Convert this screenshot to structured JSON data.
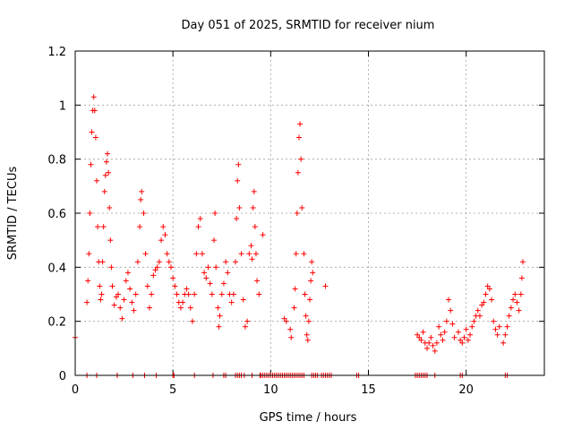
{
  "chart_data": {
    "type": "scatter",
    "title": "Day 051 of 2025, SRMTID for receiver nium",
    "xlabel": "GPS time / hours",
    "ylabel": "SRMTID / TECUs",
    "xlim": [
      0,
      24
    ],
    "ylim": [
      0,
      1.2
    ],
    "x_ticks": [
      0,
      5,
      10,
      15,
      20
    ],
    "x_tick_labels": [
      "0",
      "5",
      "10",
      "15",
      "20"
    ],
    "y_ticks": [
      0,
      0.2,
      0.4,
      0.6,
      0.8,
      1.0,
      1.2
    ],
    "y_tick_labels": [
      "0",
      "0.2",
      "0.4",
      "0.6",
      "0.8",
      "1",
      "1.2"
    ],
    "grid": true,
    "marker": "+",
    "series": [
      {
        "name": "SRMTID",
        "color": "#ff0000",
        "points": [
          [
            0.0,
            0.14
          ],
          [
            0.6,
            0.27
          ],
          [
            0.65,
            0.35
          ],
          [
            0.7,
            0.45
          ],
          [
            0.75,
            0.6
          ],
          [
            0.8,
            0.78
          ],
          [
            0.85,
            0.9
          ],
          [
            0.9,
            0.98
          ],
          [
            0.95,
            1.03
          ],
          [
            1.0,
            0.98
          ],
          [
            1.05,
            0.88
          ],
          [
            1.1,
            0.72
          ],
          [
            1.15,
            0.55
          ],
          [
            1.2,
            0.42
          ],
          [
            1.25,
            0.33
          ],
          [
            1.3,
            0.28
          ],
          [
            1.35,
            0.3
          ],
          [
            1.4,
            0.42
          ],
          [
            1.45,
            0.55
          ],
          [
            1.5,
            0.68
          ],
          [
            1.55,
            0.74
          ],
          [
            1.6,
            0.79
          ],
          [
            1.65,
            0.82
          ],
          [
            1.7,
            0.75
          ],
          [
            1.75,
            0.62
          ],
          [
            1.8,
            0.5
          ],
          [
            1.85,
            0.4
          ],
          [
            1.9,
            0.33
          ],
          [
            2.0,
            0.26
          ],
          [
            2.1,
            0.29
          ],
          [
            2.2,
            0.3
          ],
          [
            2.3,
            0.25
          ],
          [
            2.4,
            0.21
          ],
          [
            2.5,
            0.28
          ],
          [
            2.6,
            0.35
          ],
          [
            2.7,
            0.38
          ],
          [
            2.8,
            0.32
          ],
          [
            2.9,
            0.27
          ],
          [
            3.0,
            0.24
          ],
          [
            3.1,
            0.3
          ],
          [
            3.2,
            0.42
          ],
          [
            3.3,
            0.55
          ],
          [
            3.35,
            0.65
          ],
          [
            3.4,
            0.68
          ],
          [
            3.5,
            0.6
          ],
          [
            3.6,
            0.45
          ],
          [
            3.7,
            0.33
          ],
          [
            3.8,
            0.25
          ],
          [
            3.9,
            0.3
          ],
          [
            4.0,
            0.37
          ],
          [
            4.1,
            0.39
          ],
          [
            4.2,
            0.4
          ],
          [
            4.3,
            0.42
          ],
          [
            4.4,
            0.5
          ],
          [
            4.5,
            0.55
          ],
          [
            4.6,
            0.52
          ],
          [
            4.7,
            0.45
          ],
          [
            4.8,
            0.42
          ],
          [
            4.9,
            0.4
          ],
          [
            5.0,
            0.36
          ],
          [
            5.1,
            0.33
          ],
          [
            5.2,
            0.3
          ],
          [
            5.3,
            0.27
          ],
          [
            5.4,
            0.25
          ],
          [
            5.5,
            0.27
          ],
          [
            5.6,
            0.3
          ],
          [
            5.7,
            0.32
          ],
          [
            5.8,
            0.3
          ],
          [
            5.9,
            0.25
          ],
          [
            6.0,
            0.2
          ],
          [
            6.1,
            0.3
          ],
          [
            6.2,
            0.45
          ],
          [
            6.3,
            0.55
          ],
          [
            6.4,
            0.58
          ],
          [
            6.5,
            0.45
          ],
          [
            6.6,
            0.38
          ],
          [
            6.7,
            0.36
          ],
          [
            6.8,
            0.4
          ],
          [
            6.9,
            0.34
          ],
          [
            7.0,
            0.3
          ],
          [
            7.1,
            0.5
          ],
          [
            7.15,
            0.6
          ],
          [
            7.2,
            0.4
          ],
          [
            7.3,
            0.25
          ],
          [
            7.35,
            0.18
          ],
          [
            7.4,
            0.22
          ],
          [
            7.5,
            0.3
          ],
          [
            7.6,
            0.34
          ],
          [
            7.7,
            0.42
          ],
          [
            7.8,
            0.38
          ],
          [
            7.9,
            0.3
          ],
          [
            8.0,
            0.27
          ],
          [
            8.1,
            0.3
          ],
          [
            8.2,
            0.42
          ],
          [
            8.25,
            0.58
          ],
          [
            8.3,
            0.72
          ],
          [
            8.35,
            0.78
          ],
          [
            8.4,
            0.62
          ],
          [
            8.5,
            0.45
          ],
          [
            8.6,
            0.28
          ],
          [
            8.7,
            0.18
          ],
          [
            8.8,
            0.2
          ],
          [
            8.9,
            0.45
          ],
          [
            9.0,
            0.48
          ],
          [
            9.05,
            0.43
          ],
          [
            9.1,
            0.62
          ],
          [
            9.15,
            0.68
          ],
          [
            9.2,
            0.55
          ],
          [
            9.25,
            0.45
          ],
          [
            9.3,
            0.35
          ],
          [
            9.4,
            0.3
          ],
          [
            9.6,
            0.52
          ],
          [
            10.7,
            0.21
          ],
          [
            10.8,
            0.2
          ],
          [
            11.0,
            0.17
          ],
          [
            11.05,
            0.14
          ],
          [
            11.2,
            0.25
          ],
          [
            11.25,
            0.32
          ],
          [
            11.3,
            0.45
          ],
          [
            11.35,
            0.6
          ],
          [
            11.4,
            0.75
          ],
          [
            11.45,
            0.88
          ],
          [
            11.5,
            0.93
          ],
          [
            11.55,
            0.8
          ],
          [
            11.6,
            0.62
          ],
          [
            11.7,
            0.45
          ],
          [
            11.75,
            0.3
          ],
          [
            11.8,
            0.22
          ],
          [
            11.85,
            0.15
          ],
          [
            11.9,
            0.13
          ],
          [
            11.95,
            0.2
          ],
          [
            12.0,
            0.28
          ],
          [
            12.05,
            0.35
          ],
          [
            12.1,
            0.42
          ],
          [
            12.15,
            0.38
          ],
          [
            12.8,
            0.33
          ],
          [
            17.5,
            0.15
          ],
          [
            17.6,
            0.14
          ],
          [
            17.7,
            0.13
          ],
          [
            17.8,
            0.16
          ],
          [
            17.9,
            0.12
          ],
          [
            18.0,
            0.1
          ],
          [
            18.1,
            0.12
          ],
          [
            18.2,
            0.14
          ],
          [
            18.3,
            0.11
          ],
          [
            18.4,
            0.09
          ],
          [
            18.5,
            0.12
          ],
          [
            18.6,
            0.18
          ],
          [
            18.7,
            0.15
          ],
          [
            18.8,
            0.13
          ],
          [
            18.9,
            0.16
          ],
          [
            19.0,
            0.2
          ],
          [
            19.1,
            0.28
          ],
          [
            19.2,
            0.24
          ],
          [
            19.3,
            0.19
          ],
          [
            19.4,
            0.14
          ],
          [
            19.6,
            0.16
          ],
          [
            19.7,
            0.13
          ],
          [
            19.8,
            0.12
          ],
          [
            19.9,
            0.14
          ],
          [
            20.0,
            0.17
          ],
          [
            20.1,
            0.13
          ],
          [
            20.2,
            0.15
          ],
          [
            20.3,
            0.18
          ],
          [
            20.4,
            0.2
          ],
          [
            20.5,
            0.22
          ],
          [
            20.6,
            0.24
          ],
          [
            20.7,
            0.22
          ],
          [
            20.8,
            0.26
          ],
          [
            20.9,
            0.27
          ],
          [
            21.0,
            0.3
          ],
          [
            21.1,
            0.33
          ],
          [
            21.2,
            0.32
          ],
          [
            21.3,
            0.28
          ],
          [
            21.4,
            0.2
          ],
          [
            21.5,
            0.17
          ],
          [
            21.6,
            0.15
          ],
          [
            21.7,
            0.18
          ],
          [
            21.9,
            0.12
          ],
          [
            22.0,
            0.15
          ],
          [
            22.1,
            0.18
          ],
          [
            22.2,
            0.22
          ],
          [
            22.3,
            0.25
          ],
          [
            22.4,
            0.28
          ],
          [
            22.5,
            0.3
          ],
          [
            22.6,
            0.27
          ],
          [
            22.7,
            0.24
          ],
          [
            22.8,
            0.3
          ],
          [
            22.85,
            0.36
          ],
          [
            22.9,
            0.42
          ]
        ],
        "zero_points": [
          0.6,
          1.1,
          2.15,
          2.95,
          3.55,
          4.15,
          5.0,
          5.05,
          6.1,
          7.05,
          7.6,
          7.7,
          8.2,
          8.3,
          8.4,
          8.5,
          8.65,
          9.05,
          9.45,
          9.5,
          9.6,
          9.7,
          9.8,
          9.9,
          10.0,
          10.1,
          10.2,
          10.3,
          10.4,
          10.5,
          10.6,
          10.7,
          10.8,
          10.9,
          11.0,
          11.1,
          11.2,
          11.3,
          11.4,
          11.5,
          11.6,
          11.7,
          12.1,
          12.2,
          12.3,
          12.4,
          12.6,
          12.7,
          12.8,
          12.9,
          13.0,
          13.1,
          14.4,
          14.5,
          17.4,
          17.5,
          17.6,
          17.7,
          17.8,
          17.9,
          18.0,
          18.4,
          19.7,
          19.8,
          22.0,
          22.1
        ]
      }
    ]
  }
}
